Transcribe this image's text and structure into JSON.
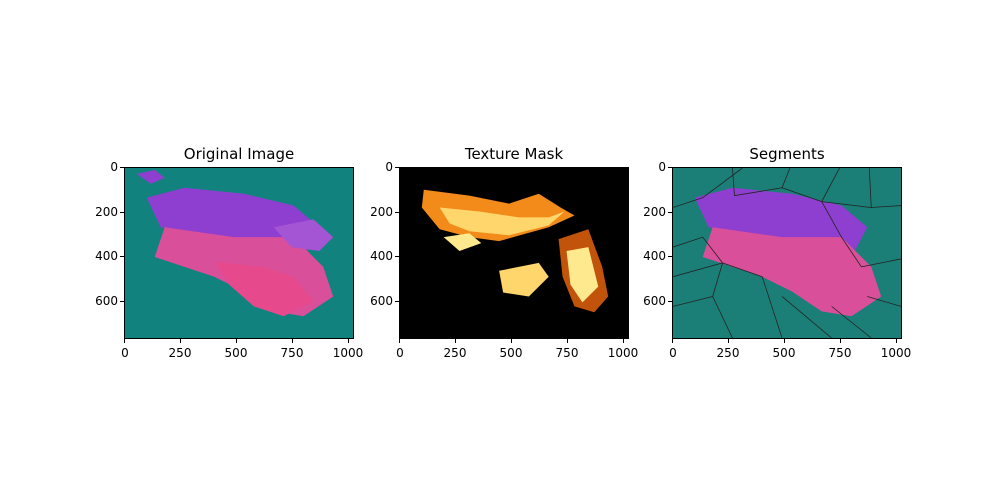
{
  "figure": {
    "panels": [
      {
        "title": "Original Image",
        "kind": "original",
        "background_color": "#12827f",
        "colors": [
          "#8e3fcf",
          "#d94f9a",
          "#e64a8c",
          "#a455d4"
        ]
      },
      {
        "title": "Texture Mask",
        "kind": "mask",
        "background_color": "#000000",
        "colors": [
          "#f28b1a",
          "#ffd66b",
          "#ffe98f",
          "#c2530a"
        ]
      },
      {
        "title": "Segments",
        "kind": "segments",
        "background_color": "#1b7f78",
        "colors": [
          "#8e3fcf",
          "#d94f9a",
          "#222222"
        ]
      }
    ],
    "x_ticks": [
      "0",
      "250",
      "500",
      "750",
      "1000"
    ],
    "y_ticks": [
      "0",
      "200",
      "400",
      "600"
    ]
  }
}
